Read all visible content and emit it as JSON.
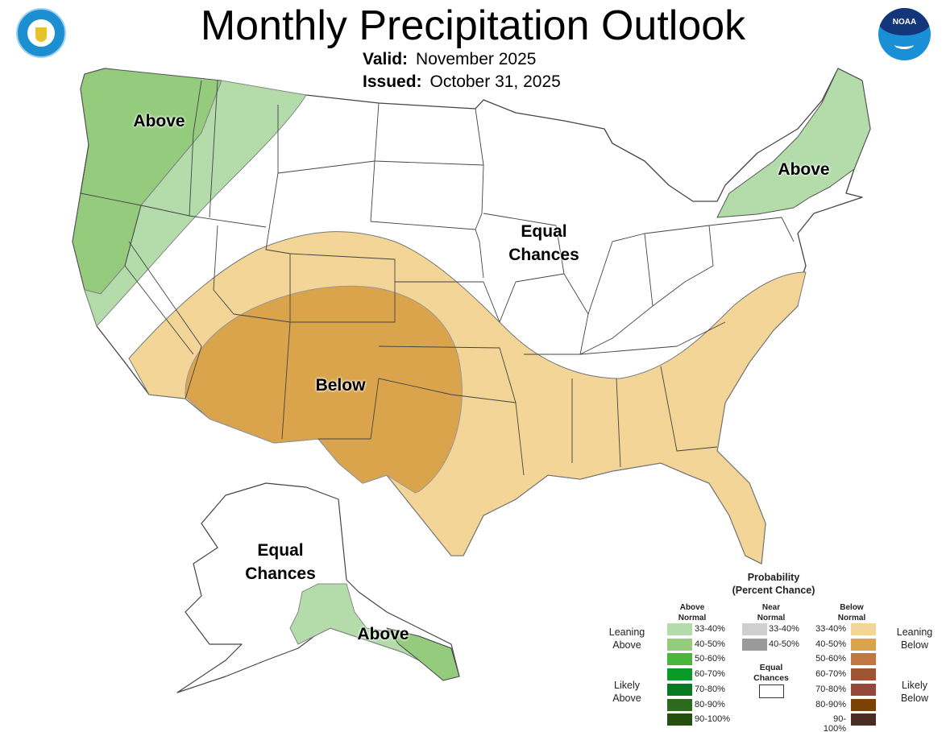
{
  "header": {
    "title": "Monthly Precipitation Outlook",
    "valid_label": "Valid:",
    "valid_value": "November 2025",
    "issued_label": "Issued:",
    "issued_value": "October 31, 2025",
    "left_logo": "department-of-commerce-seal",
    "right_logo": "noaa-logo",
    "right_logo_text": "NOAA"
  },
  "map_labels": {
    "pacific_nw": "Above",
    "northeast": "Above",
    "midwest_line1": "Equal",
    "midwest_line2": "Chances",
    "southwest": "Below",
    "alaska_line1": "Equal",
    "alaska_line2": "Chances",
    "alaska_se": "Above"
  },
  "colors": {
    "above_33_40": "#b3dcaa",
    "above_40_50": "#94cb7c",
    "below_33_40": "#f2d597",
    "below_40_50": "#d9a44c"
  },
  "legend": {
    "title1": "Probability",
    "title2": "(Percent Chance)",
    "above_header1": "Above",
    "above_header2": "Normal",
    "near_header1": "Near",
    "near_header2": "Normal",
    "below_header1": "Below",
    "below_header2": "Normal",
    "leaning_above1": "Leaning",
    "leaning_above2": "Above",
    "likely_above1": "Likely",
    "likely_above2": "Above",
    "leaning_below1": "Leaning",
    "leaning_below2": "Below",
    "likely_below1": "Likely",
    "likely_below2": "Below",
    "equal1": "Equal",
    "equal2": "Chances",
    "above": [
      {
        "range": "33-40%",
        "color": "#b3dcaa"
      },
      {
        "range": "40-50%",
        "color": "#94cb7c"
      },
      {
        "range": "50-60%",
        "color": "#4cb63c"
      },
      {
        "range": "60-70%",
        "color": "#0a9a2a"
      },
      {
        "range": "70-80%",
        "color": "#0a7a22"
      },
      {
        "range": "80-90%",
        "color": "#2c6a1e"
      },
      {
        "range": "90-100%",
        "color": "#254f0f"
      }
    ],
    "near": [
      {
        "range": "33-40%",
        "color": "#cfcfcf"
      },
      {
        "range": "40-50%",
        "color": "#9a9a9a"
      }
    ],
    "below": [
      {
        "range": "33-40%",
        "color": "#f2d597"
      },
      {
        "range": "40-50%",
        "color": "#d9a44c"
      },
      {
        "range": "50-60%",
        "color": "#c07840"
      },
      {
        "range": "60-70%",
        "color": "#9c5530"
      },
      {
        "range": "70-80%",
        "color": "#93483a"
      },
      {
        "range": "80-90%",
        "color": "#7c4105"
      },
      {
        "range": "90-100%",
        "color": "#4a2b26"
      }
    ]
  }
}
